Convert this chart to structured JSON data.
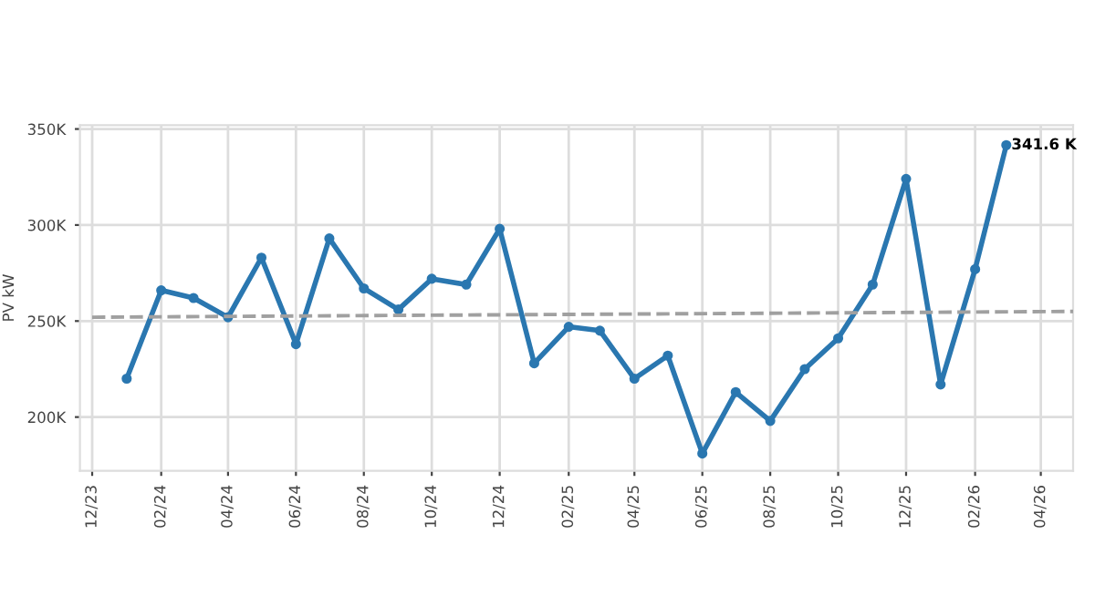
{
  "chart_data": {
    "type": "line",
    "ylabel": "PV kW",
    "x": [
      "2024-01",
      "2024-02",
      "2024-03",
      "2024-04",
      "2024-05",
      "2024-06",
      "2024-07",
      "2024-08",
      "2024-09",
      "2024-10",
      "2024-11",
      "2024-12",
      "2025-01",
      "2025-02",
      "2025-03",
      "2025-04",
      "2025-05",
      "2025-06",
      "2025-07",
      "2025-08",
      "2025-09",
      "2025-10",
      "2025-11",
      "2025-12",
      "2026-01",
      "2026-02",
      "2026-03"
    ],
    "series": [
      {
        "color": "#2a77b0",
        "marker": "circle",
        "line_style": "solid",
        "values": [
          220000,
          266000,
          262000,
          252000,
          283000,
          238000,
          293000,
          267000,
          256000,
          272000,
          269000,
          298000,
          228000,
          247000,
          245000,
          220000,
          232000,
          181000,
          213000,
          198000,
          225000,
          241000,
          269000,
          324000,
          217000,
          277000,
          341600
        ]
      },
      {
        "type": "line",
        "color": "#a0a0a0",
        "marker": "none",
        "line_style": "dashed",
        "x": [
          "2023-12-01",
          "2026-04-30"
        ],
        "values": [
          252000,
          255000
        ]
      }
    ],
    "xlim": [
      "2023-11-20",
      "2026-04-30"
    ],
    "xticks": [
      {
        "value": "2023-12",
        "label": "12/23"
      },
      {
        "value": "2024-02",
        "label": "02/24"
      },
      {
        "value": "2024-04",
        "label": "04/24"
      },
      {
        "value": "2024-06",
        "label": "06/24"
      },
      {
        "value": "2024-08",
        "label": "08/24"
      },
      {
        "value": "2024-10",
        "label": "10/24"
      },
      {
        "value": "2024-12",
        "label": "12/24"
      },
      {
        "value": "2025-02",
        "label": "02/25"
      },
      {
        "value": "2025-04",
        "label": "04/25"
      },
      {
        "value": "2025-06",
        "label": "06/25"
      },
      {
        "value": "2025-08",
        "label": "08/25"
      },
      {
        "value": "2025-10",
        "label": "10/25"
      },
      {
        "value": "2025-12",
        "label": "12/25"
      },
      {
        "value": "2026-02",
        "label": "02/26"
      },
      {
        "value": "2026-04",
        "label": "04/26"
      }
    ],
    "ylim": [
      172000,
      352000
    ],
    "yticks": [
      {
        "value": 200000,
        "label": "200K"
      },
      {
        "value": 250000,
        "label": "250K"
      },
      {
        "value": 300000,
        "label": "300K"
      },
      {
        "value": 350000,
        "label": "350K"
      }
    ],
    "grid": true,
    "annotations": [
      {
        "text": "341.6 K",
        "x": "2026-03",
        "y": 341600
      }
    ]
  }
}
